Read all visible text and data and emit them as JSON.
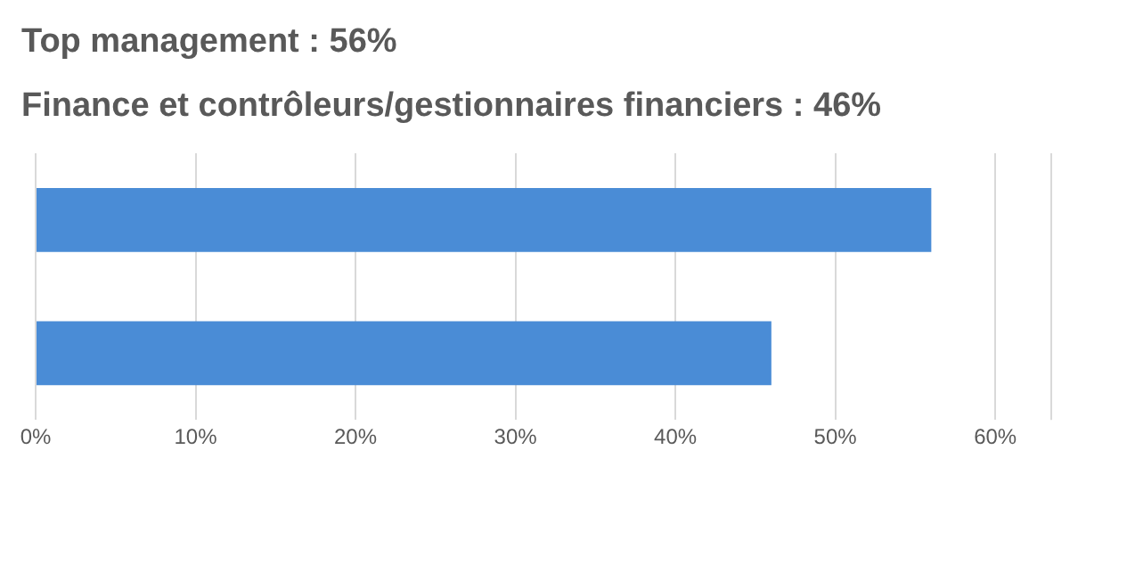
{
  "chart_data": {
    "type": "bar",
    "orientation": "horizontal",
    "annotations": [
      "Top management : 56%",
      "Finance et contrôleurs/gestionnaires financiers : 46%"
    ],
    "categories": [
      null,
      null
    ],
    "values": [
      56,
      46
    ],
    "color": "#4a8cd6",
    "xlim": [
      0,
      63.5
    ],
    "xticks": [
      {
        "value": 0,
        "label": "0%"
      },
      {
        "value": 10,
        "label": "10%"
      },
      {
        "value": 20,
        "label": "20%"
      },
      {
        "value": 30,
        "label": "30%"
      },
      {
        "value": 40,
        "label": "40%"
      },
      {
        "value": 50,
        "label": "50%"
      },
      {
        "value": 60,
        "label": "60%"
      }
    ],
    "grid": "x",
    "legend": false
  }
}
